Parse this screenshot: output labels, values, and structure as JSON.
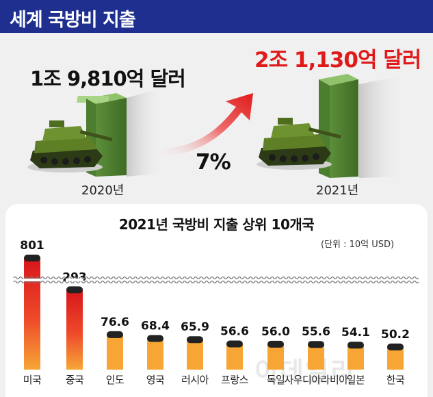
{
  "header": {
    "title": "세계 국방비 지출"
  },
  "summary": {
    "amount_2020": "1조 9,810억 달러",
    "amount_2021": "2조 1,130억 달러",
    "growth": "7%",
    "year_2020": "2020년",
    "year_2021": "2021년"
  },
  "watermark": "이데일리",
  "colors": {
    "header": "#1f2f8f",
    "accent_red": "#e01a1a",
    "bar_bottom": "#f7a636",
    "bar_cap": "#222222",
    "money": "#5c8f3a",
    "tank": "#4f6d1f"
  },
  "icons": [
    "tank-icon",
    "money-stack-icon",
    "up-arrow-icon"
  ],
  "chart_data": {
    "type": "bar",
    "title": "2021년 국방비 지출 상위 10개국",
    "unit": "(단위 : 10억 USD)",
    "axis_break": true,
    "categories": [
      "미국",
      "중국",
      "인도",
      "영국",
      "러시아",
      "프랑스",
      "독일",
      "사우디아라비아",
      "일본",
      "한국"
    ],
    "values": [
      801,
      293,
      76.6,
      68.4,
      65.9,
      56.6,
      56.0,
      55.6,
      54.1,
      50.2
    ],
    "value_labels": [
      "801",
      "293",
      "76.6",
      "68.4",
      "65.9",
      "56.6",
      "56.0",
      "55.6",
      "54.1",
      "50.2"
    ],
    "xlabel": "",
    "ylabel": ""
  }
}
